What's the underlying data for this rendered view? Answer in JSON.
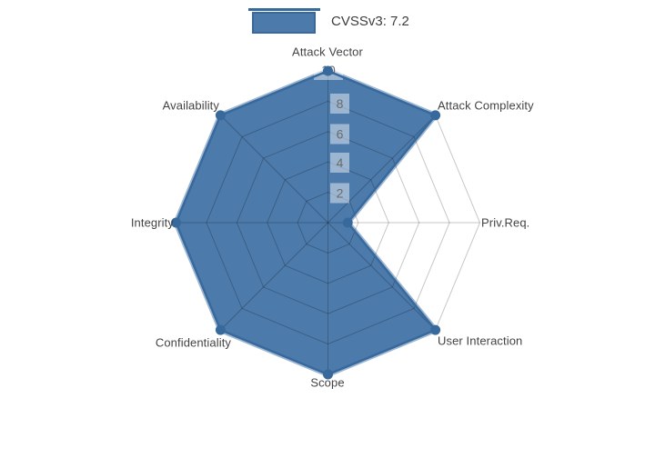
{
  "legend": {
    "label": "CVSSv3: 7.2"
  },
  "colors": {
    "fill": "#4c7aab",
    "fill_halo": "rgba(76,122,171,0.55)",
    "line": "#38699c",
    "grid": "rgba(0,0,0,0.22)",
    "tick_bg": "rgba(255,255,255,0.45)",
    "tick_text": "#6b6b6b",
    "label_text": "#444444"
  },
  "chart_data": {
    "type": "radar",
    "title": "",
    "categories": [
      "Attack Vector",
      "Attack Complexity",
      "Priv.Req.",
      "User Interaction",
      "Scope",
      "Confidentiality",
      "Integrity",
      "Availability"
    ],
    "series": [
      {
        "name": "CVSSv3: 7.2",
        "values": [
          10,
          10,
          1.3,
          10,
          10,
          10,
          10,
          10
        ]
      }
    ],
    "radial_ticks": [
      2,
      4,
      6,
      8,
      10
    ],
    "range": [
      0,
      10
    ],
    "start_angle": "top",
    "direction": "clockwise",
    "grid": "on",
    "legend_position": "top-center"
  }
}
